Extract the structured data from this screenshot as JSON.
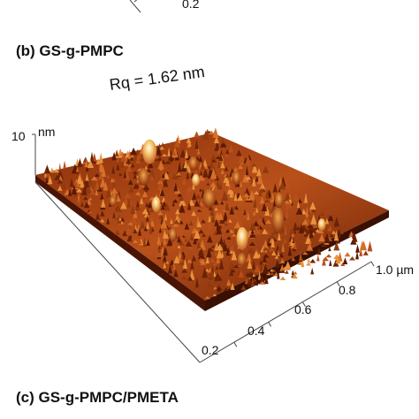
{
  "top_partial": {
    "tick": "0.2"
  },
  "panel_b": {
    "label": "(b) GS-g-PMPC",
    "roughness": "Rq = 1.62 nm",
    "z_axis": {
      "max_label": "10",
      "unit": "nm"
    },
    "x_axis": {
      "ticks": [
        "0.2",
        "0.4",
        "0.6",
        "0.8",
        "1.0 µm"
      ]
    }
  },
  "panel_c": {
    "label": "(c) GS-g-PMPC/PMETA"
  },
  "colors": {
    "surface_dark": "#5a1a05",
    "surface_mid": "#b8501a",
    "surface_light": "#f0a24a",
    "peak": "#fff4d6"
  }
}
